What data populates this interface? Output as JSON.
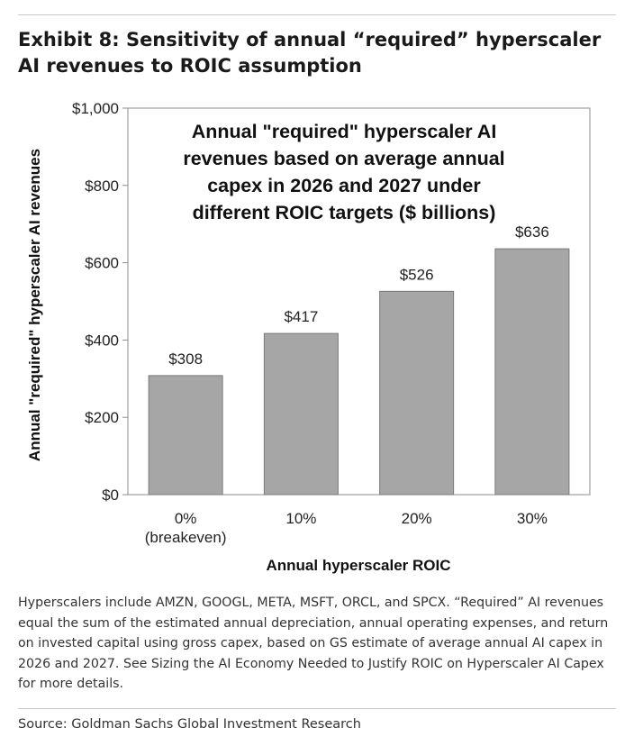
{
  "exhibit": {
    "title": "Exhibit 8: Sensitivity of annual “required” hyperscaler AI revenues to ROIC assumption"
  },
  "chart_data": {
    "type": "bar",
    "inner_title_lines": [
      "Annual \"required\" hyperscaler AI",
      "revenues based on average annual",
      "capex in 2026 and 2027 under",
      "different ROIC targets ($ billions)"
    ],
    "categories": [
      [
        "0%",
        "(breakeven)"
      ],
      [
        "10%"
      ],
      [
        "20%"
      ],
      [
        "30%"
      ]
    ],
    "values": [
      308,
      417,
      526,
      636
    ],
    "value_labels": [
      "$308",
      "$417",
      "$526",
      "$636"
    ],
    "xlabel": "Annual hyperscaler ROIC",
    "ylabel": "Annual \"required\" hyperscaler AI revenues",
    "ylim": [
      0,
      1000
    ],
    "y_ticks": [
      0,
      200,
      400,
      600,
      800,
      1000
    ],
    "y_tick_labels": [
      "$0",
      "$200",
      "$400",
      "$600",
      "$800",
      "$1,000"
    ],
    "grid": false,
    "bar_color": "#a6a6a6",
    "bar_edge_color": "#7a7a7a"
  },
  "note": {
    "text": "Hyperscalers include AMZN, GOOGL, META, MSFT, ORCL, and SPCX. “Required” AI revenues equal the sum of the estimated annual depreciation, annual operating expenses, and return on invested capital using gross capex, based on GS estimate of average annual AI capex in 2026 and 2027. See Sizing the AI Economy Needed to Justify ROIC on Hyperscaler AI Capex for more details."
  },
  "source": {
    "text": "Source: Goldman Sachs Global Investment Research"
  }
}
